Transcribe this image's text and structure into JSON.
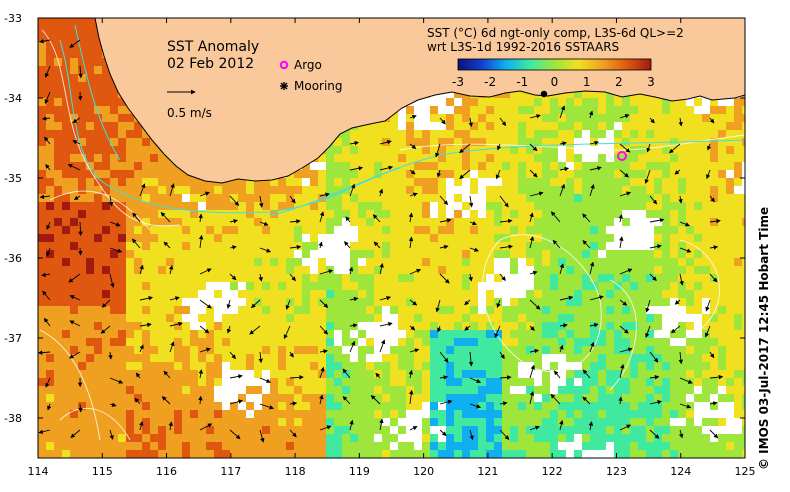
{
  "map": {
    "title": "SST Anomaly",
    "date": "02 Feb 2012",
    "legend": {
      "argo_label": "Argo",
      "mooring_label": "Mooring",
      "vector_scale_label": "0.5 m/s",
      "argo_color": "#ff00ff",
      "mooring_color": "#000000"
    },
    "colorbar": {
      "line1": "SST (°C) 6d ngt-only comp, L3S-6d QL>=2",
      "line2": "wrt L3S-1d 1992-2016 SSTAARS",
      "ticks": [
        "-3",
        "-2",
        "-1",
        "0",
        "1",
        "2",
        "3"
      ],
      "colors": [
        "#10107a",
        "#1040d0",
        "#10b0f0",
        "#40e8a0",
        "#9ee63c",
        "#f0e020",
        "#f0a020",
        "#e05810",
        "#a01a10"
      ]
    },
    "x_ticks": [
      "114",
      "115",
      "116",
      "117",
      "118",
      "119",
      "120",
      "121",
      "122",
      "123",
      "124",
      "125"
    ],
    "y_ticks": [
      "-33",
      "-34",
      "-35",
      "-36",
      "-37",
      "-38"
    ],
    "land_color": "#f9c89b",
    "credit": "© IMOS 03-Jul-2017 12:45 Hobart Time",
    "chart_data": {
      "type": "heatmap",
      "title": "SST Anomaly",
      "subtitle": "02 Feb 2012",
      "x_range": [
        114,
        125
      ],
      "y_range": [
        -38.5,
        -33
      ],
      "colorbar_range": [
        -3,
        3
      ],
      "argo_positions": [
        {
          "lon": 123.05,
          "lat": -34.73
        }
      ],
      "mooring_positions": [
        {
          "lon": 121.9,
          "lat": -33.95
        }
      ]
    }
  }
}
